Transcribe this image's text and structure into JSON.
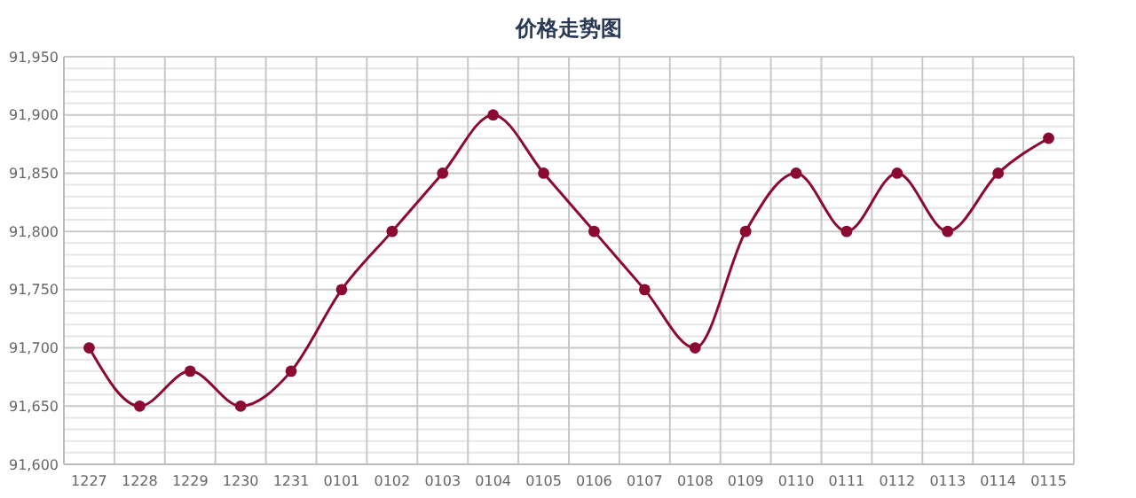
{
  "chart_data": {
    "type": "line",
    "title": "价格走势图",
    "categories": [
      "1227",
      "1228",
      "1229",
      "1230",
      "1231",
      "0101",
      "0102",
      "0103",
      "0104",
      "0105",
      "0106",
      "0107",
      "0108",
      "0109",
      "0110",
      "0111",
      "0112",
      "0113",
      "0114",
      "0115"
    ],
    "series": [
      {
        "color": "#8b0a32",
        "values": [
          91700,
          91650,
          91680,
          91650,
          91680,
          91750,
          91800,
          91850,
          91900,
          91850,
          91800,
          91750,
          91700,
          91800,
          91850,
          91800,
          91850,
          91800,
          91850,
          91880
        ]
      }
    ],
    "ylim": [
      91600,
      91950
    ],
    "yticks": [
      {
        "value": 91600,
        "label": "91,600"
      },
      {
        "value": 91650,
        "label": "91,650"
      },
      {
        "value": 91700,
        "label": "91,700"
      },
      {
        "value": 91750,
        "label": "91,750"
      },
      {
        "value": 91800,
        "label": "91,800"
      },
      {
        "value": 91850,
        "label": "91,850"
      },
      {
        "value": 91900,
        "label": "91,900"
      },
      {
        "value": 91950,
        "label": "91,950"
      }
    ],
    "grid": true,
    "marker": "circle",
    "line_style": "solid"
  }
}
